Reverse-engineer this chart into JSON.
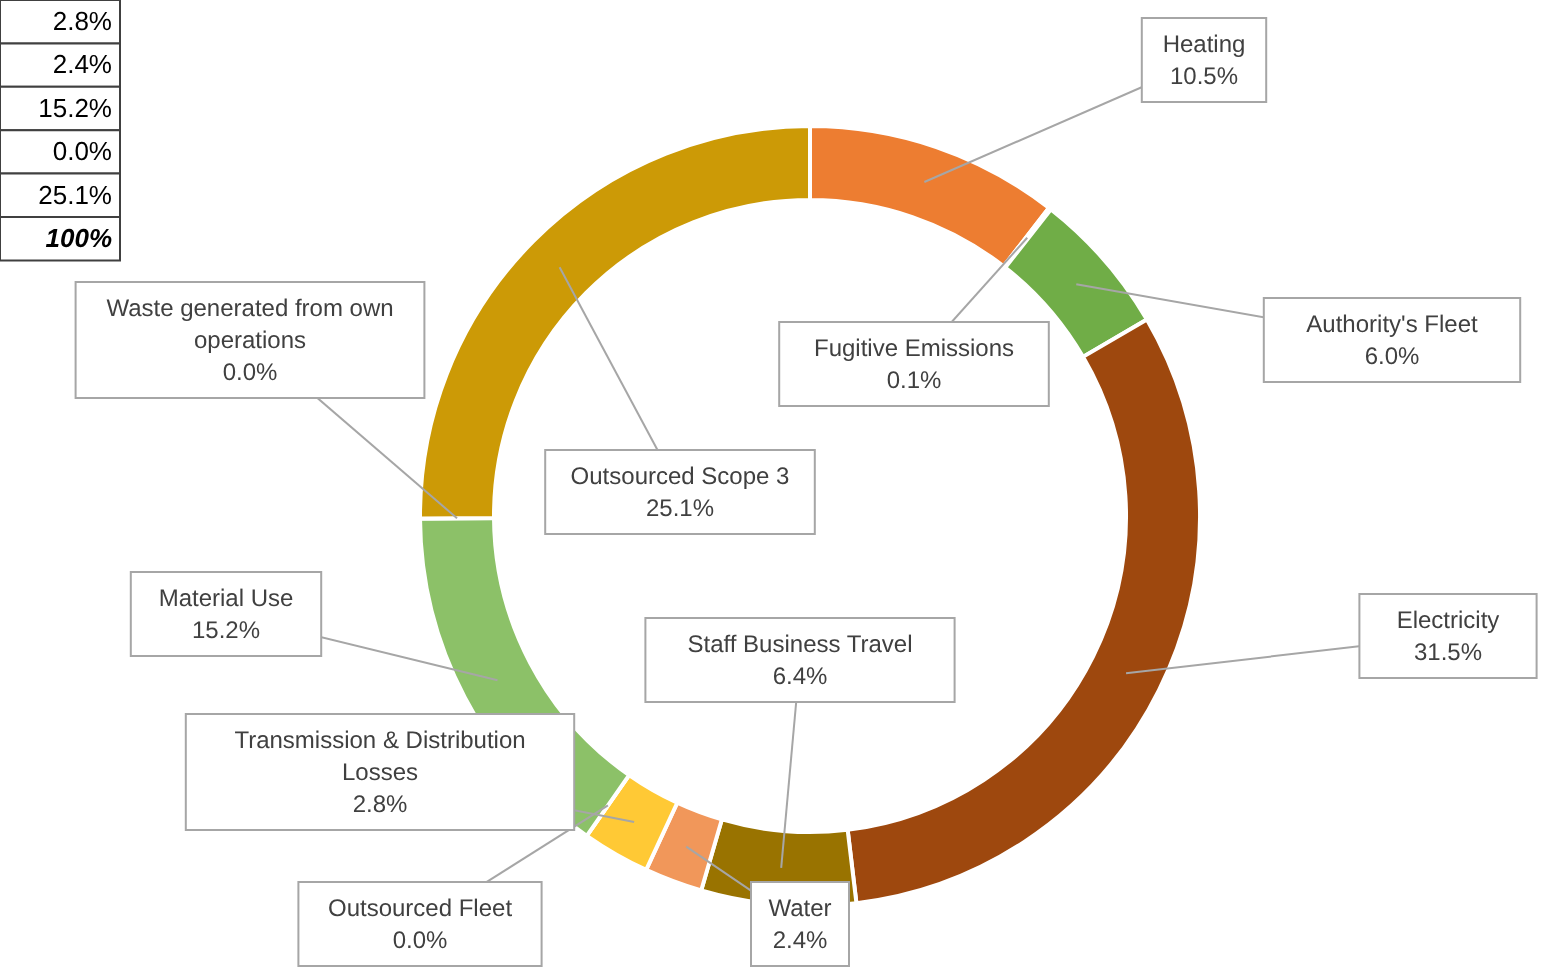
{
  "chart_data": {
    "type": "donut",
    "categories": [
      "Heating",
      "Fugitive Emissions",
      "Authority's Fleet",
      "Electricity",
      "Staff Business Travel",
      "Water",
      "Transmission & Distribution Losses",
      "Outsourced Fleet",
      "Material Use",
      "Waste generated from own operations",
      "Outsourced Scope 3"
    ],
    "values": [
      10.5,
      0.1,
      6.0,
      31.5,
      6.4,
      2.4,
      2.8,
      0.0,
      15.2,
      0.0,
      25.1
    ],
    "value_labels": [
      "10.5%",
      "0.1%",
      "6.0%",
      "31.5%",
      "6.4%",
      "2.4%",
      "2.8%",
      "0.0%",
      "15.2%",
      "0.0%",
      "25.1%"
    ],
    "colors": [
      "#ed7d31",
      "#5b9bd5",
      "#70ad47",
      "#9e480e",
      "#997300",
      "#f1975a",
      "#ffc935",
      "#264478",
      "#8cc168",
      "#43682b",
      "#cc9a06"
    ],
    "annotations": [
      "2.8%",
      "2.4%",
      "15.2%",
      "0.0%",
      "25.1%",
      "100%"
    ]
  }
}
